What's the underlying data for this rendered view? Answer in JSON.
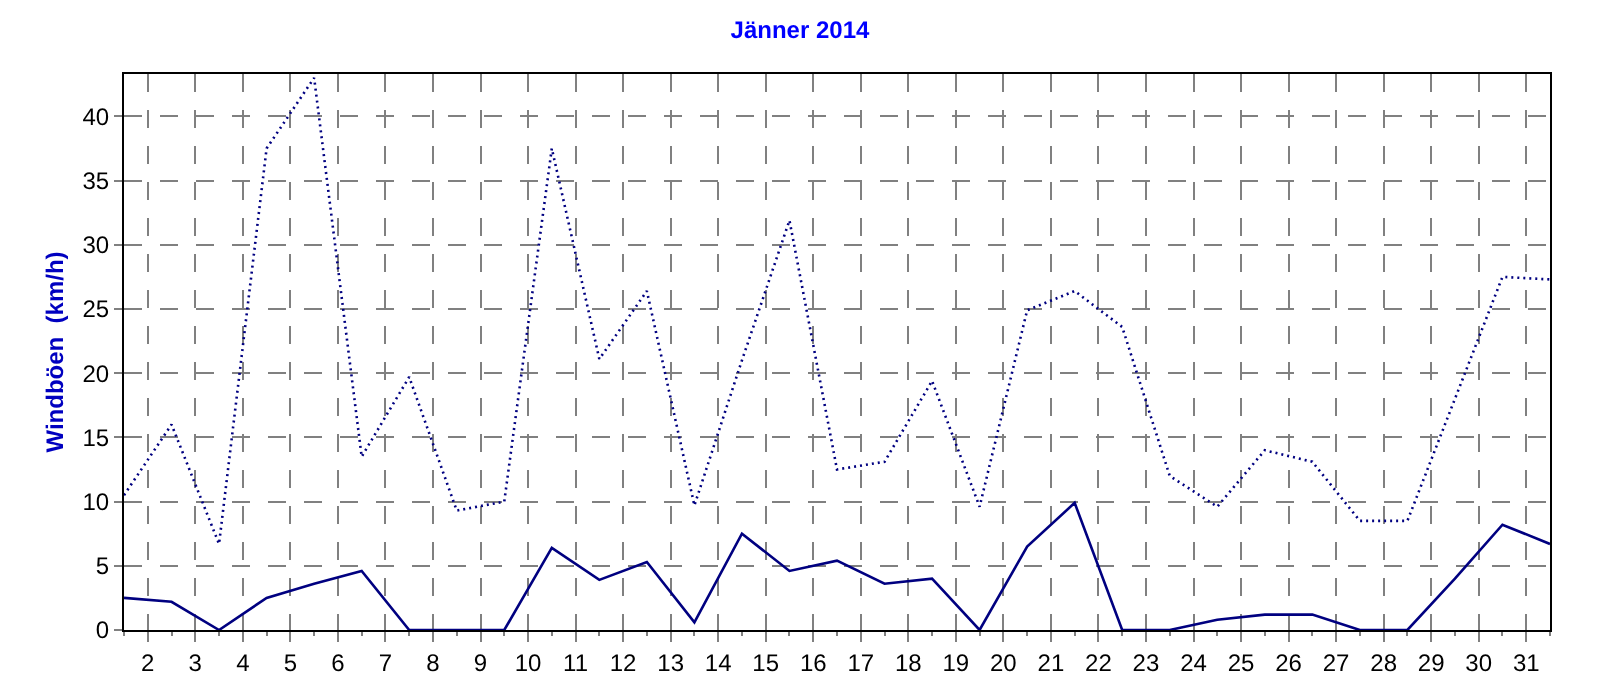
{
  "chart_data": {
    "type": "line",
    "title": "Jänner 2014",
    "ylabel": "Windböen  (km/h)",
    "xlim": [
      1.5,
      31.5
    ],
    "xticks": [
      2,
      3,
      4,
      5,
      6,
      7,
      8,
      9,
      10,
      11,
      12,
      13,
      14,
      15,
      16,
      17,
      18,
      19,
      20,
      21,
      22,
      23,
      24,
      25,
      26,
      27,
      28,
      29,
      30,
      31
    ],
    "ylim": [
      0,
      43.3
    ],
    "yticks": [
      0,
      5,
      10,
      15,
      20,
      25,
      30,
      35,
      40
    ],
    "grid": true,
    "marker": "none",
    "x": [
      1.5,
      2.5,
      3.5,
      4.5,
      5.5,
      6.5,
      7.5,
      8.5,
      9.5,
      10.5,
      11.5,
      12.5,
      13.5,
      14.5,
      15.5,
      16.5,
      17.5,
      18.5,
      19.5,
      20.5,
      21.5,
      22.5,
      23.5,
      24.5,
      25.5,
      26.5,
      27.5,
      28.5,
      29.5,
      30.5,
      31.5
    ],
    "series": [
      {
        "color": "#000080",
        "line_style": "dotted",
        "values": [
          10.5,
          16,
          6.7,
          37.5,
          43,
          13.5,
          19.7,
          9.3,
          10,
          37.5,
          21.1,
          26.4,
          9.7,
          21,
          31.9,
          12.5,
          13.1,
          19.4,
          9.6,
          24.9,
          26.4,
          23.6,
          12,
          9.6,
          14,
          13.1,
          8.5,
          8.5,
          18,
          27.5,
          27.3
        ]
      },
      {
        "color": "#000080",
        "line_style": "solid",
        "values": [
          2.5,
          2.2,
          0,
          2.5,
          3.6,
          4.6,
          0,
          0,
          0,
          6.4,
          3.9,
          5.3,
          0.6,
          7.5,
          4.6,
          5.4,
          3.6,
          4,
          0,
          6.5,
          9.9,
          0,
          0,
          0.8,
          1.2,
          1.2,
          0,
          0,
          4,
          8.2,
          6.7
        ]
      }
    ]
  }
}
